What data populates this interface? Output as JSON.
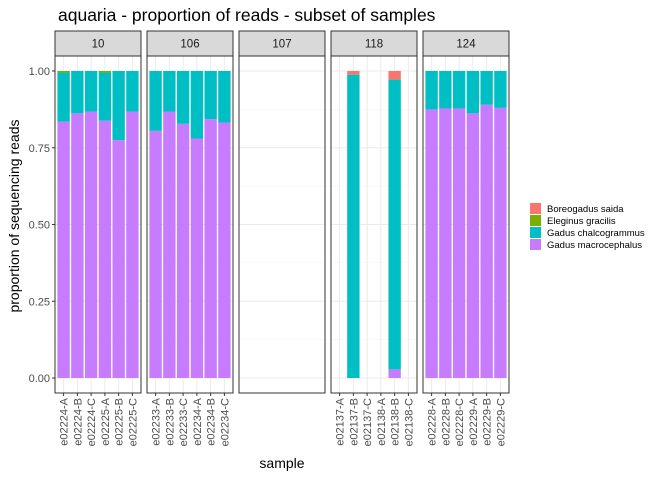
{
  "chart_data": {
    "type": "bar",
    "stacked": true,
    "title": "aquaria - proportion of reads - subset of samples",
    "xlabel": "sample",
    "ylabel": "proportion of sequencing reads",
    "ylim": [
      0,
      1
    ],
    "yticks": [
      "0.00",
      "0.25",
      "0.50",
      "0.75",
      "1.00"
    ],
    "grid": true,
    "legend_position": "right",
    "legend": [
      {
        "name": "Boreogadus saida",
        "color": "#F8766D"
      },
      {
        "name": "Eleginus gracilis",
        "color": "#7CAE00"
      },
      {
        "name": "Gadus chalcogrammus",
        "color": "#00BFC4"
      },
      {
        "name": "Gadus macrocephalus",
        "color": "#C77CFF"
      }
    ],
    "stack_order": [
      "Gadus macrocephalus",
      "Gadus chalcogrammus",
      "Eleginus gracilis",
      "Boreogadus saida"
    ],
    "facets": [
      {
        "label": "10",
        "samples": [
          "e02224-A",
          "e02224-B",
          "e02224-C",
          "e02225-A",
          "e02225-B",
          "e02225-C"
        ],
        "values": {
          "Gadus macrocephalus": [
            0.835,
            0.862,
            0.868,
            0.838,
            0.775,
            0.868
          ],
          "Gadus chalcogrammus": [
            0.16,
            0.138,
            0.132,
            0.157,
            0.225,
            0.132
          ],
          "Eleginus gracilis": [
            0.005,
            0.0,
            0.0,
            0.005,
            0.0,
            0.0
          ],
          "Boreogadus saida": [
            0,
            0,
            0,
            0,
            0,
            0
          ]
        }
      },
      {
        "label": "106",
        "samples": [
          "e02233-A",
          "e02233-B",
          "e02233-C",
          "e02234-A",
          "e02234-B",
          "e02234-C"
        ],
        "values": {
          "Gadus macrocephalus": [
            0.805,
            0.868,
            0.828,
            0.78,
            0.843,
            0.832
          ],
          "Gadus chalcogrammus": [
            0.195,
            0.132,
            0.172,
            0.22,
            0.157,
            0.168
          ],
          "Eleginus gracilis": [
            0,
            0,
            0,
            0,
            0,
            0
          ],
          "Boreogadus saida": [
            0,
            0,
            0,
            0,
            0,
            0
          ]
        }
      },
      {
        "label": "107",
        "samples": [],
        "values": {}
      },
      {
        "label": "118",
        "samples": [
          "e02137-A",
          "e02137-B",
          "e02137-C",
          "e02138-A",
          "e02138-B",
          "e02138-C"
        ],
        "values": {
          "Gadus macrocephalus": [
            0,
            0.0,
            0,
            0,
            0.028,
            0
          ],
          "Gadus chalcogrammus": [
            0,
            0.988,
            0,
            0,
            0.944,
            0
          ],
          "Eleginus gracilis": [
            0,
            0,
            0,
            0,
            0,
            0
          ],
          "Boreogadus saida": [
            0,
            0.012,
            0,
            0,
            0.028,
            0
          ]
        }
      },
      {
        "label": "124",
        "samples": [
          "e02228-A",
          "e02228-B",
          "e02228-C",
          "e02229-A",
          "e02229-B",
          "e02229-C"
        ],
        "values": {
          "Gadus macrocephalus": [
            0.875,
            0.878,
            0.878,
            0.862,
            0.89,
            0.88
          ],
          "Gadus chalcogrammus": [
            0.125,
            0.122,
            0.122,
            0.138,
            0.11,
            0.12
          ],
          "Eleginus gracilis": [
            0,
            0,
            0,
            0,
            0,
            0
          ],
          "Boreogadus saida": [
            0,
            0,
            0,
            0,
            0,
            0
          ]
        }
      }
    ]
  }
}
